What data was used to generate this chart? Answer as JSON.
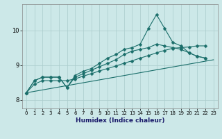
{
  "xlabel": "Humidex (Indice chaleur)",
  "background_color": "#cce8e8",
  "grid_color": "#aacccc",
  "line_color": "#1a6e6a",
  "xlim": [
    -0.5,
    23.5
  ],
  "ylim": [
    7.75,
    10.75
  ],
  "yticks": [
    8,
    9,
    10
  ],
  "xticks": [
    0,
    1,
    2,
    3,
    4,
    5,
    6,
    7,
    8,
    9,
    10,
    11,
    12,
    13,
    14,
    15,
    16,
    17,
    18,
    19,
    20,
    21,
    22,
    23
  ],
  "line1_x": [
    0,
    1,
    2,
    3,
    4,
    5,
    6,
    7,
    8,
    9,
    10,
    11,
    12,
    13,
    14,
    15,
    16,
    17,
    18,
    19,
    20,
    21,
    22
  ],
  "line1_y": [
    8.2,
    8.55,
    8.65,
    8.65,
    8.65,
    8.35,
    8.7,
    8.82,
    8.9,
    9.05,
    9.2,
    9.3,
    9.45,
    9.5,
    9.6,
    10.05,
    10.45,
    10.05,
    9.65,
    9.55,
    9.35,
    9.25,
    9.2
  ],
  "line2_x": [
    0,
    1,
    2,
    3,
    4,
    5,
    6,
    7,
    8,
    9,
    10,
    11,
    12,
    13,
    14,
    15,
    16,
    17,
    18,
    19,
    20,
    21,
    22
  ],
  "line2_y": [
    8.2,
    8.55,
    8.65,
    8.65,
    8.65,
    8.35,
    8.65,
    8.75,
    8.85,
    8.95,
    9.05,
    9.15,
    9.3,
    9.4,
    9.45,
    9.5,
    9.6,
    9.55,
    9.5,
    9.45,
    9.35,
    9.25,
    9.2
  ],
  "line3_x": [
    0,
    1,
    2,
    3,
    4,
    5,
    6,
    7,
    8,
    9,
    10,
    11,
    12,
    13,
    14,
    15,
    16,
    17,
    18,
    19,
    20,
    21,
    22,
    23
  ],
  "line3_y": [
    8.2,
    8.45,
    8.55,
    8.55,
    8.55,
    8.55,
    8.6,
    8.68,
    8.75,
    8.83,
    8.9,
    8.97,
    9.05,
    9.12,
    9.2,
    9.27,
    9.35,
    9.42,
    9.48,
    9.5,
    9.52,
    9.55,
    9.55,
    null
  ],
  "line4_x": [
    0,
    23
  ],
  "line4_y": [
    8.2,
    9.15
  ]
}
